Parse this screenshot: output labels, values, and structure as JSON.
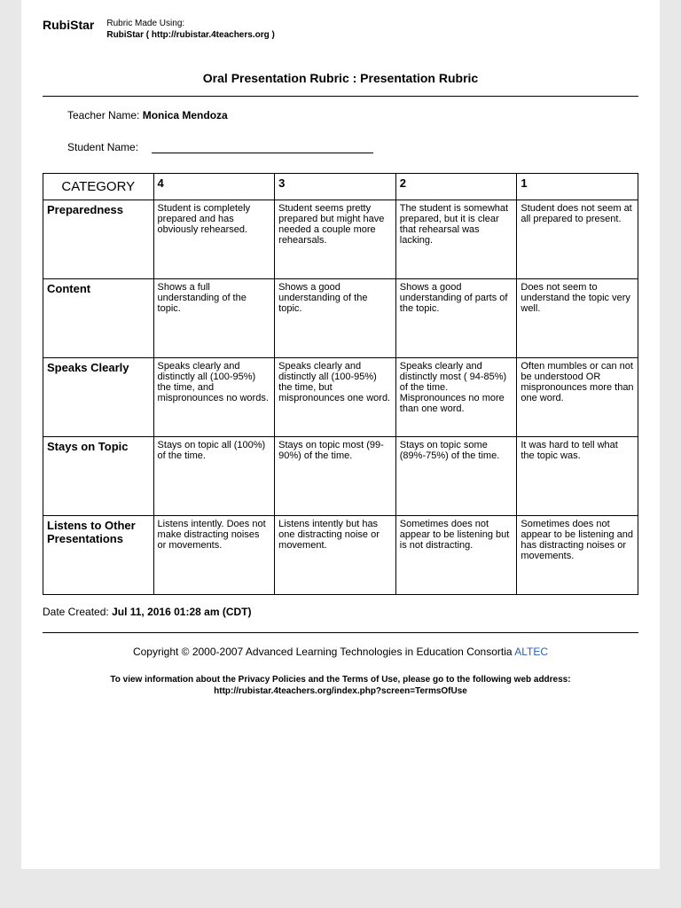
{
  "header": {
    "logo": "RubiStar",
    "made_using_label": "Rubric Made Using:",
    "made_using_source": "RubiStar ( http://rubistar.4teachers.org )"
  },
  "title": "Oral Presentation Rubric : Presentation Rubric",
  "teacher": {
    "label": "Teacher Name:",
    "value": "Monica Mendoza"
  },
  "student": {
    "label": "Student Name:"
  },
  "table": {
    "category_header": "CATEGORY",
    "score_headers": [
      "4",
      "3",
      "2",
      "1"
    ],
    "rows": [
      {
        "category": "Preparedness",
        "cells": [
          "Student is completely prepared and has obviously rehearsed.",
          "Student seems pretty prepared but might have needed a couple more rehearsals.",
          "The student is somewhat prepared, but it is clear that rehearsal was lacking.",
          "Student does not seem at all prepared to present."
        ]
      },
      {
        "category": "Content",
        "cells": [
          "Shows a full understanding of the topic.",
          "Shows a good understanding of the topic.",
          "Shows a good understanding of parts of the topic.",
          "Does not seem to understand the topic very well."
        ]
      },
      {
        "category": "Speaks Clearly",
        "cells": [
          "Speaks clearly and distinctly all (100-95%) the time, and mispronounces no words.",
          "Speaks clearly and distinctly all (100-95%) the time, but mispronounces one word.",
          "Speaks clearly and distinctly most ( 94-85%) of the time. Mispronounces no more than one word.",
          "Often mumbles or can not be understood OR mispronounces more than one word."
        ]
      },
      {
        "category": "Stays on Topic",
        "cells": [
          "Stays on topic all (100%) of the time.",
          "Stays on topic most (99-90%) of the time.",
          "Stays on topic some (89%-75%) of the time.",
          "It was hard to tell what the topic was."
        ]
      },
      {
        "category": "Listens to Other Presentations",
        "cells": [
          "Listens intently. Does not make distracting noises or movements.",
          "Listens intently but has one distracting noise or movement.",
          "Sometimes does not appear to be listening but is not distracting.",
          "Sometimes does not appear to be listening and has distracting noises or movements."
        ]
      }
    ]
  },
  "date": {
    "label": "Date Created:",
    "value": "Jul 11, 2016 01:28 am (CDT)"
  },
  "copyright": {
    "text": "Copyright © 2000-2007 Advanced Learning Technologies in Education Consortia ",
    "link": "ALTEC"
  },
  "privacy": {
    "line1": "To view information about the Privacy Policies and the Terms of Use, please go to the following web address:",
    "line2": "http://rubistar.4teachers.org/index.php?screen=TermsOfUse"
  }
}
